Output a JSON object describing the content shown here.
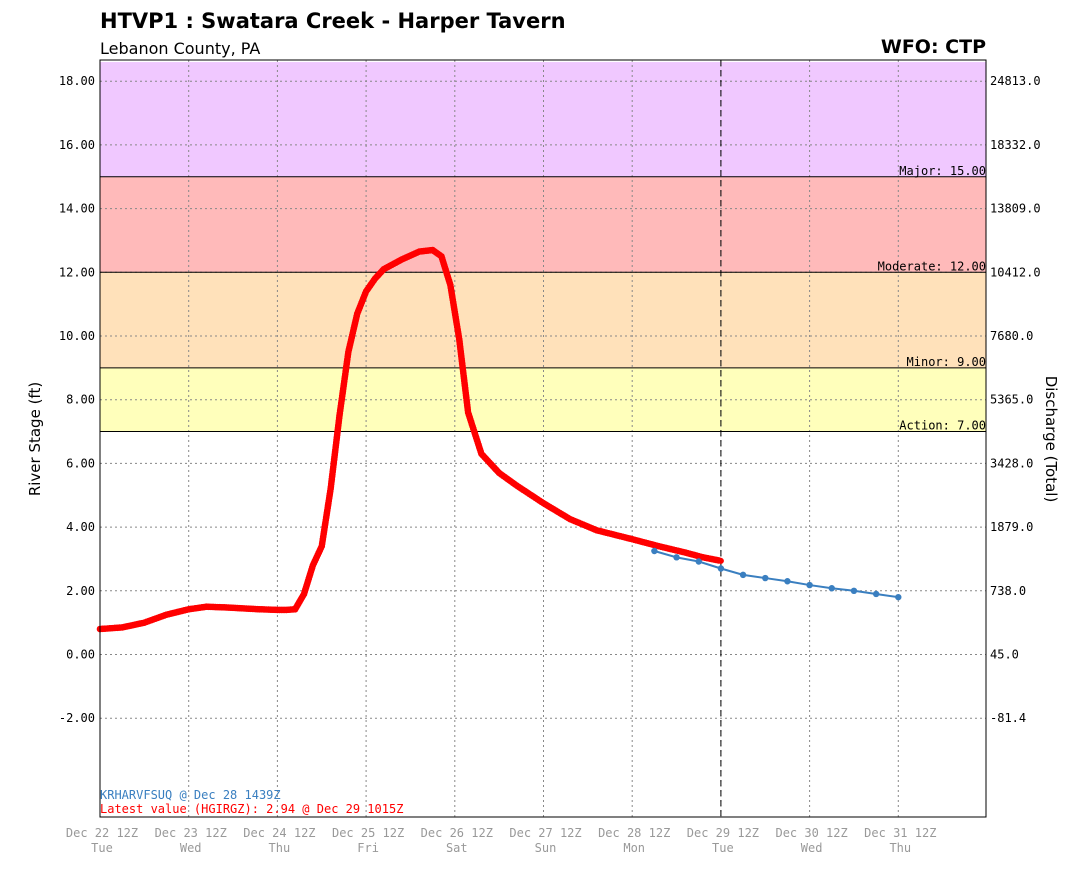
{
  "header": {
    "title": "HTVP1 : Swatara Creek - Harper Tavern",
    "subtitle": "Lebanon County, PA",
    "wfo": "WFO: CTP"
  },
  "footer": {
    "forecast_note": "KRHARVFSUQ @ Dec 28 1439Z",
    "latest_note": "Latest value (HGIRGZ): 2.94 @ Dec 29 1015Z"
  },
  "chart_data": {
    "type": "line",
    "ylabel": "River Stage (ft)",
    "y2label": "Discharge (Total)",
    "ylim": [
      -5.3,
      18.6
    ],
    "xlim": [
      0,
      10
    ],
    "now_x": 7.0,
    "y_ticks": [
      {
        "value": 18,
        "label": "18.00",
        "discharge": "24813.0"
      },
      {
        "value": 16,
        "label": "16.00",
        "discharge": "18332.0"
      },
      {
        "value": 14,
        "label": "14.00",
        "discharge": "13809.0"
      },
      {
        "value": 12,
        "label": "12.00",
        "discharge": "10412.0"
      },
      {
        "value": 10,
        "label": "10.00",
        "discharge": "7680.0"
      },
      {
        "value": 8,
        "label": "8.00",
        "discharge": "5365.0"
      },
      {
        "value": 6,
        "label": "6.00",
        "discharge": "3428.0"
      },
      {
        "value": 4,
        "label": "4.00",
        "discharge": "1879.0"
      },
      {
        "value": 2,
        "label": "2.00",
        "discharge": "738.0"
      },
      {
        "value": 0,
        "label": "0.00",
        "discharge": "45.0"
      },
      {
        "value": -2,
        "label": "-2.00",
        "discharge": "-81.4"
      }
    ],
    "x_ticks": [
      {
        "x": 0,
        "date": "Dec 22 12Z",
        "day": "Tue"
      },
      {
        "x": 1,
        "date": "Dec 23 12Z",
        "day": "Wed"
      },
      {
        "x": 2,
        "date": "Dec 24 12Z",
        "day": "Thu"
      },
      {
        "x": 3,
        "date": "Dec 25 12Z",
        "day": "Fri"
      },
      {
        "x": 4,
        "date": "Dec 26 12Z",
        "day": "Sat"
      },
      {
        "x": 5,
        "date": "Dec 27 12Z",
        "day": "Sun"
      },
      {
        "x": 6,
        "date": "Dec 28 12Z",
        "day": "Mon"
      },
      {
        "x": 7,
        "date": "Dec 29 12Z",
        "day": "Tue"
      },
      {
        "x": 8,
        "date": "Dec 30 12Z",
        "day": "Wed"
      },
      {
        "x": 9,
        "date": "Dec 31 12Z",
        "day": "Thu"
      }
    ],
    "flood_zones": [
      {
        "name": "Major",
        "label": "Major: 15.00",
        "from": 15,
        "to": 18.6,
        "color": "#f0c8ff"
      },
      {
        "name": "Moderate",
        "label": "Moderate: 12.00",
        "from": 12,
        "to": 15,
        "color": "#ffbaba"
      },
      {
        "name": "Minor",
        "label": "Minor: 9.00",
        "from": 9,
        "to": 12,
        "color": "#ffe1ba"
      },
      {
        "name": "Action",
        "label": "Action: 7.00",
        "from": 7,
        "to": 9,
        "color": "#ffffbb"
      }
    ],
    "series": [
      {
        "name": "Observed",
        "color": "#ff0000",
        "x": [
          0,
          0.25,
          0.5,
          0.75,
          1.0,
          1.2,
          1.4,
          1.6,
          1.8,
          2.0,
          2.1,
          2.2,
          2.3,
          2.4,
          2.5,
          2.6,
          2.7,
          2.8,
          2.9,
          3.0,
          3.1,
          3.2,
          3.4,
          3.6,
          3.75,
          3.85,
          3.95,
          4.05,
          4.15,
          4.3,
          4.5,
          4.7,
          5.0,
          5.3,
          5.6,
          6.0,
          6.3,
          6.6,
          6.8,
          7.0
        ],
        "values": [
          0.8,
          0.85,
          1.0,
          1.25,
          1.42,
          1.5,
          1.48,
          1.45,
          1.42,
          1.4,
          1.4,
          1.42,
          1.9,
          2.8,
          3.4,
          5.2,
          7.5,
          9.5,
          10.7,
          11.4,
          11.8,
          12.1,
          12.4,
          12.65,
          12.7,
          12.5,
          11.6,
          9.9,
          7.6,
          6.3,
          5.7,
          5.3,
          4.75,
          4.25,
          3.9,
          3.62,
          3.4,
          3.2,
          3.05,
          2.94
        ]
      },
      {
        "name": "Forecast",
        "color": "#3a7fc0",
        "x": [
          6.25,
          6.5,
          6.75,
          7.0,
          7.25,
          7.5,
          7.75,
          8.0,
          8.25,
          8.5,
          8.75,
          9.0
        ],
        "values": [
          3.25,
          3.05,
          2.92,
          2.7,
          2.5,
          2.4,
          2.3,
          2.18,
          2.08,
          2.0,
          1.9,
          1.8
        ]
      }
    ]
  }
}
